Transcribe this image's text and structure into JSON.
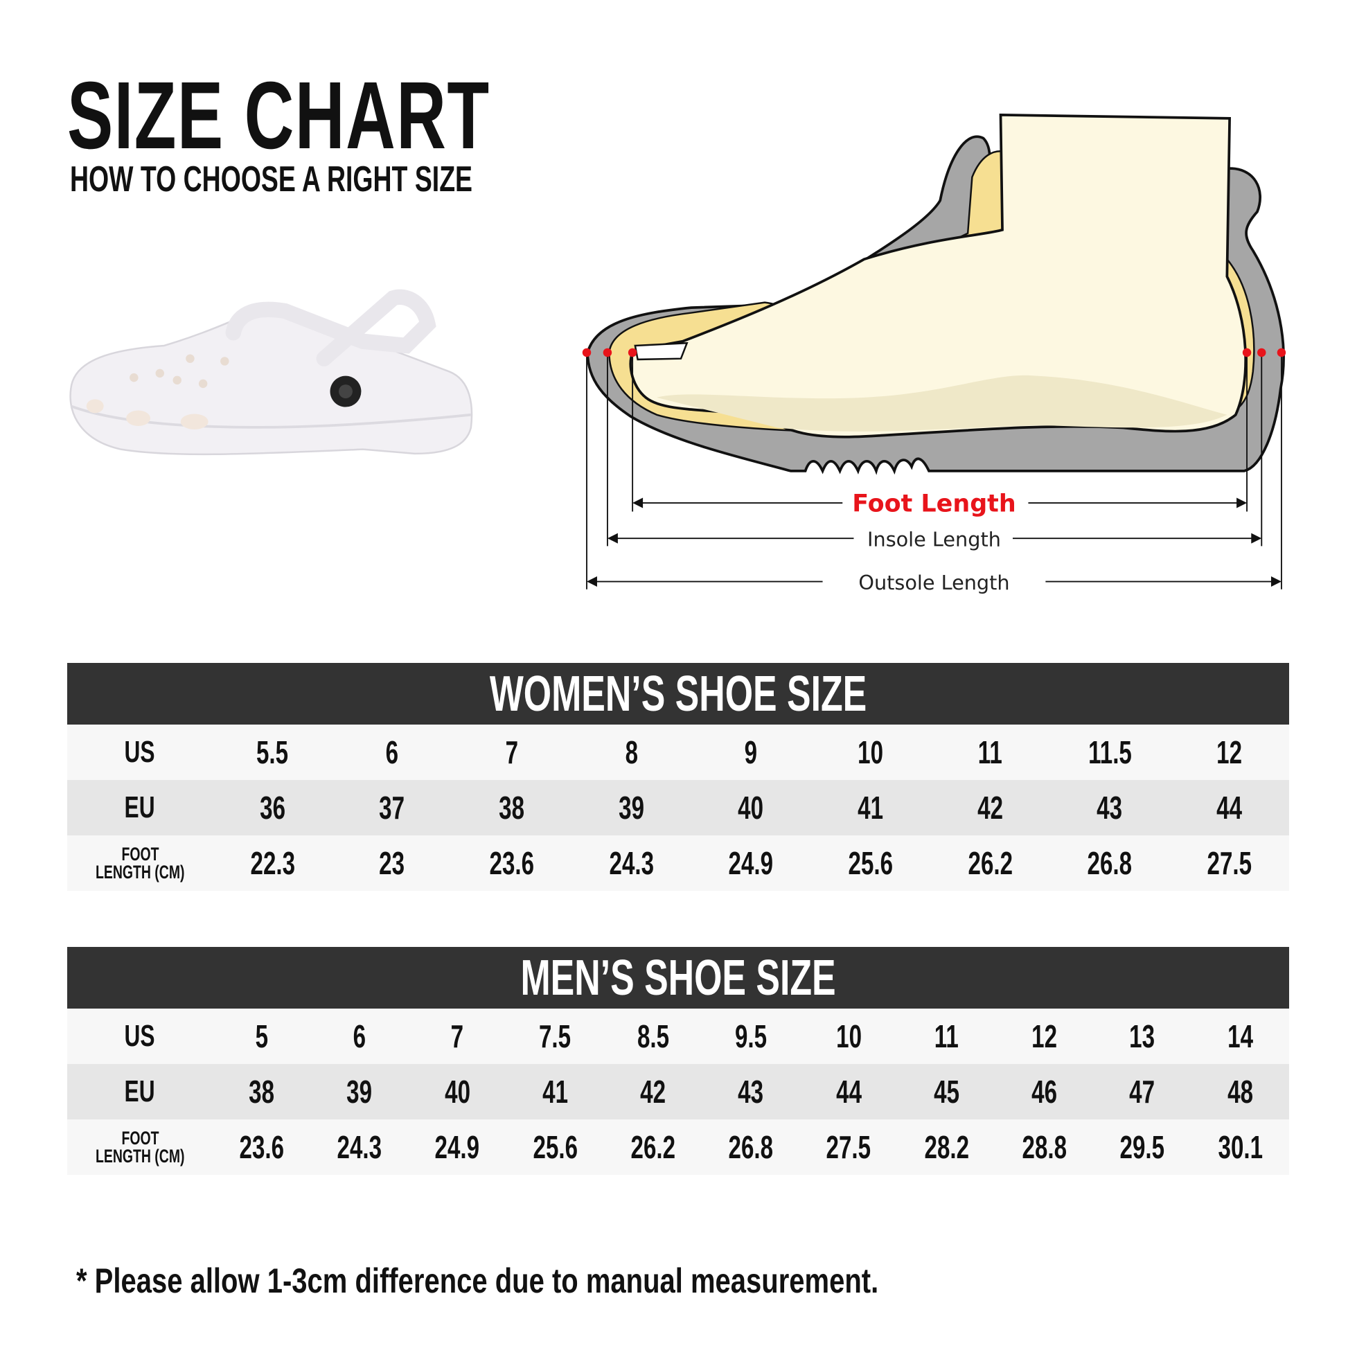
{
  "header": {
    "title": "SIZE CHART",
    "subtitle": "HOW TO CHOOSE A RIGHT SIZE"
  },
  "diagram": {
    "foot_length": "Foot Length",
    "insole_length": "Insole Length",
    "outsole_length": "Outsole Length",
    "colors": {
      "foot_length": "#e8141b",
      "outsole": "#a6a6a6",
      "insole": "#f6df92",
      "foot": "#fdf8e1",
      "marker": "#e8141b"
    }
  },
  "women": {
    "title": "WOMEN’S SHOE SIZE",
    "row_labels": {
      "us": "US",
      "eu": "EU",
      "foot_1": "FOOT",
      "foot_2": "LENGTH (CM)"
    },
    "us": [
      "5.5",
      "6",
      "7",
      "8",
      "9",
      "10",
      "11",
      "11.5",
      "12"
    ],
    "eu": [
      "36",
      "37",
      "38",
      "39",
      "40",
      "41",
      "42",
      "43",
      "44"
    ],
    "foot_cm": [
      "22.3",
      "23",
      "23.6",
      "24.3",
      "24.9",
      "25.6",
      "26.2",
      "26.8",
      "27.5"
    ]
  },
  "men": {
    "title": "MEN’S SHOE SIZE",
    "row_labels": {
      "us": "US",
      "eu": "EU",
      "foot_1": "FOOT",
      "foot_2": "LENGTH (CM)"
    },
    "us": [
      "5",
      "6",
      "7",
      "7.5",
      "8.5",
      "9.5",
      "10",
      "11",
      "12",
      "13",
      "14"
    ],
    "eu": [
      "38",
      "39",
      "40",
      "41",
      "42",
      "43",
      "44",
      "45",
      "46",
      "47",
      "48"
    ],
    "foot_cm": [
      "23.6",
      "24.3",
      "24.9",
      "25.6",
      "26.2",
      "26.8",
      "27.5",
      "28.2",
      "28.8",
      "29.5",
      "30.1"
    ]
  },
  "footnote": "* Please allow 1-3cm difference due to manual measurement."
}
